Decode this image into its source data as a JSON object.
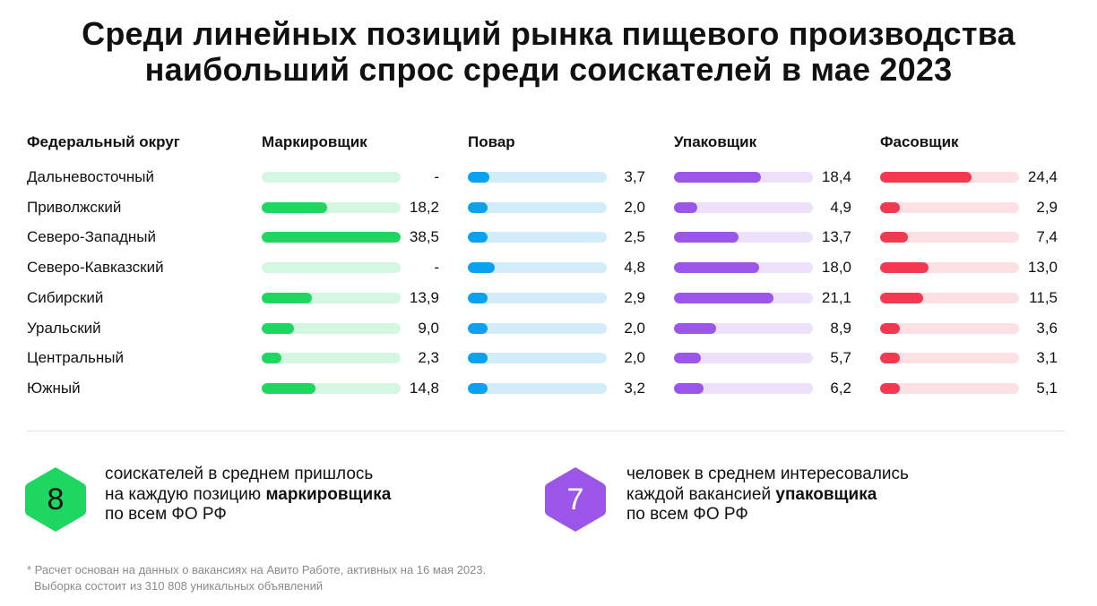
{
  "title": {
    "line1": "Среди линейных позиций рынка пищевого производства",
    "line2": "наибольший спрос среди соискателей в мае 2023"
  },
  "table": {
    "region_header": "Федеральный округ",
    "regions": [
      "Дальневосточный",
      "Приволжский",
      "Северо-Западный",
      "Северо-Кавказский",
      "Сибирский",
      "Уральский",
      "Центральный",
      "Южный"
    ]
  },
  "chart_data": {
    "type": "bar",
    "orientation": "horizontal",
    "categories": [
      "Дальневосточный",
      "Приволжский",
      "Северо-Западный",
      "Северо-Кавказский",
      "Сибирский",
      "Уральский",
      "Центральный",
      "Южный"
    ],
    "series": [
      {
        "name": "Маркировщик",
        "color": "#1ed760",
        "track_color": "#d3f7e0",
        "max": 38.5,
        "values": [
          null,
          18.2,
          38.5,
          null,
          13.9,
          9.0,
          2.3,
          14.8
        ],
        "labels": [
          "-",
          "18,2",
          "38,5",
          "-",
          "13,9",
          "9,0",
          "2,3",
          "14,8"
        ]
      },
      {
        "name": "Повар",
        "color": "#0aa2ee",
        "track_color": "#d2ecfa",
        "max": 24.4,
        "values": [
          3.7,
          2.0,
          2.5,
          4.8,
          2.9,
          2.0,
          2.0,
          3.2
        ],
        "labels": [
          "3,7",
          "2,0",
          "2,5",
          "4,8",
          "2,9",
          "2,0",
          "2,0",
          "3,2"
        ]
      },
      {
        "name": "Упаковщик",
        "color": "#9b55e8",
        "track_color": "#ece0fb",
        "max": 29.5,
        "values": [
          18.4,
          4.9,
          13.7,
          18.0,
          21.1,
          8.9,
          5.7,
          6.2
        ],
        "labels": [
          "18,4",
          "4,9",
          "13,7",
          "18,0",
          "21,1",
          "8,9",
          "5,7",
          "6,2"
        ]
      },
      {
        "name": "Фасовщик",
        "color": "#f2394f",
        "track_color": "#fde0e4",
        "max": 37,
        "values": [
          24.4,
          2.9,
          7.4,
          13.0,
          11.5,
          3.6,
          3.1,
          5.1
        ],
        "labels": [
          "24,4",
          "2,9",
          "7,4",
          "13,0",
          "11,5",
          "3,6",
          "3,1",
          "5,1"
        ]
      }
    ]
  },
  "stats": [
    {
      "number": "8",
      "color": "#1ed760",
      "number_color": "#111111",
      "line1": "соискателей в среднем пришлось",
      "line2_prefix": "на каждую позицию ",
      "line2_bold": "маркировщика",
      "line3": "по всем ФО РФ"
    },
    {
      "number": "7",
      "color": "#9b55e8",
      "number_color": "#ffffff",
      "line1": "человек в среднем интересовались",
      "line2_prefix": "каждой вакансией ",
      "line2_bold": "упаковщика",
      "line3": "по всем ФО РФ"
    }
  ],
  "footnote": {
    "line1": "* Расчет основан на данных о вакансиях на Авито Работе, активных на 16 мая 2023.",
    "line2": "Выборка состоит из 310 808 уникальных объявлений"
  }
}
